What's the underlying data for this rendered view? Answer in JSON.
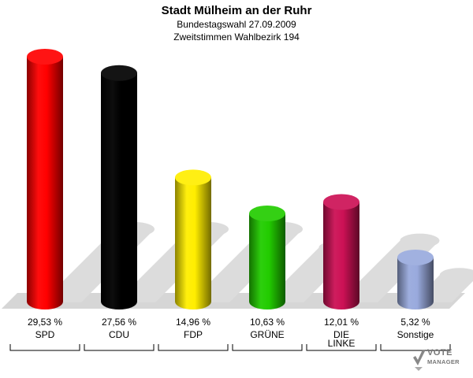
{
  "header": {
    "title": "Stadt Mülheim an der Ruhr",
    "subtitle1": "Bundestagswahl 27.09.2009",
    "subtitle2": "Zweitstimmen Wahlbezirk 194"
  },
  "logo": {
    "line1": "VOTE",
    "line2": "MANAGER"
  },
  "chart_data": {
    "type": "bar",
    "title": "Stadt Mülheim an der Ruhr",
    "subtitle": "Bundestagswahl 27.09.2009 · Zweitstimmen Wahlbezirk 194",
    "categories": [
      "SPD",
      "CDU",
      "FDP",
      "GRÜNE",
      "DIE LINKE",
      "Sonstige"
    ],
    "category_lines": [
      [
        "SPD"
      ],
      [
        "CDU"
      ],
      [
        "FDP"
      ],
      [
        "GRÜNE"
      ],
      [
        "DIE",
        "LINKE"
      ],
      [
        "Sonstige"
      ]
    ],
    "values": [
      29.53,
      27.56,
      14.96,
      10.63,
      12.01,
      5.32
    ],
    "value_labels": [
      "29,53 %",
      "27,56 %",
      "14,96 %",
      "10,63 %",
      "12,01 %",
      "5,32 %"
    ],
    "colors": [
      "#ff0000",
      "#000000",
      "#ffee00",
      "#22cc00",
      "#cc1155",
      "#99aadd"
    ],
    "ylim": [
      0,
      30
    ],
    "grid": false,
    "legend": "none"
  }
}
